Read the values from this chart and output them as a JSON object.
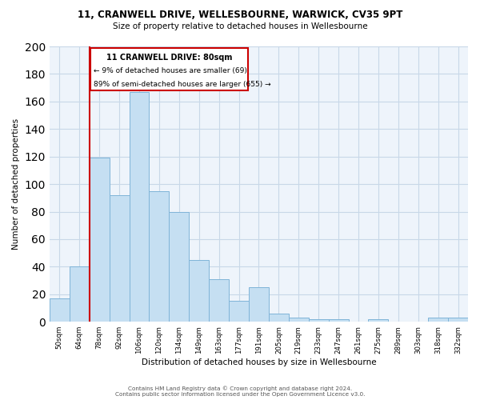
{
  "title_line1": "11, CRANWELL DRIVE, WELLESBOURNE, WARWICK, CV35 9PT",
  "title_line2": "Size of property relative to detached houses in Wellesbourne",
  "xlabel": "Distribution of detached houses by size in Wellesbourne",
  "ylabel": "Number of detached properties",
  "bar_labels": [
    "50sqm",
    "64sqm",
    "78sqm",
    "92sqm",
    "106sqm",
    "120sqm",
    "134sqm",
    "149sqm",
    "163sqm",
    "177sqm",
    "191sqm",
    "205sqm",
    "219sqm",
    "233sqm",
    "247sqm",
    "261sqm",
    "275sqm",
    "289sqm",
    "303sqm",
    "318sqm",
    "332sqm"
  ],
  "bar_heights": [
    17,
    40,
    119,
    92,
    167,
    95,
    80,
    45,
    31,
    15,
    25,
    6,
    3,
    2,
    2,
    0,
    2,
    0,
    0,
    3,
    3
  ],
  "bar_color": "#c5dff2",
  "bar_edge_color": "#7fb4d8",
  "vline_color": "#cc0000",
  "vline_x_idx": 2,
  "box_edge_color": "#cc0000",
  "ylim": [
    0,
    200
  ],
  "yticks": [
    0,
    20,
    40,
    60,
    80,
    100,
    120,
    140,
    160,
    180,
    200
  ],
  "footer_line1": "Contains HM Land Registry data © Crown copyright and database right 2024.",
  "footer_line2": "Contains public sector information licensed under the Open Government Licence v3.0.",
  "plot_bg_color": "#eef4fb",
  "fig_bg_color": "#ffffff",
  "grid_color": "#c8d8e8"
}
